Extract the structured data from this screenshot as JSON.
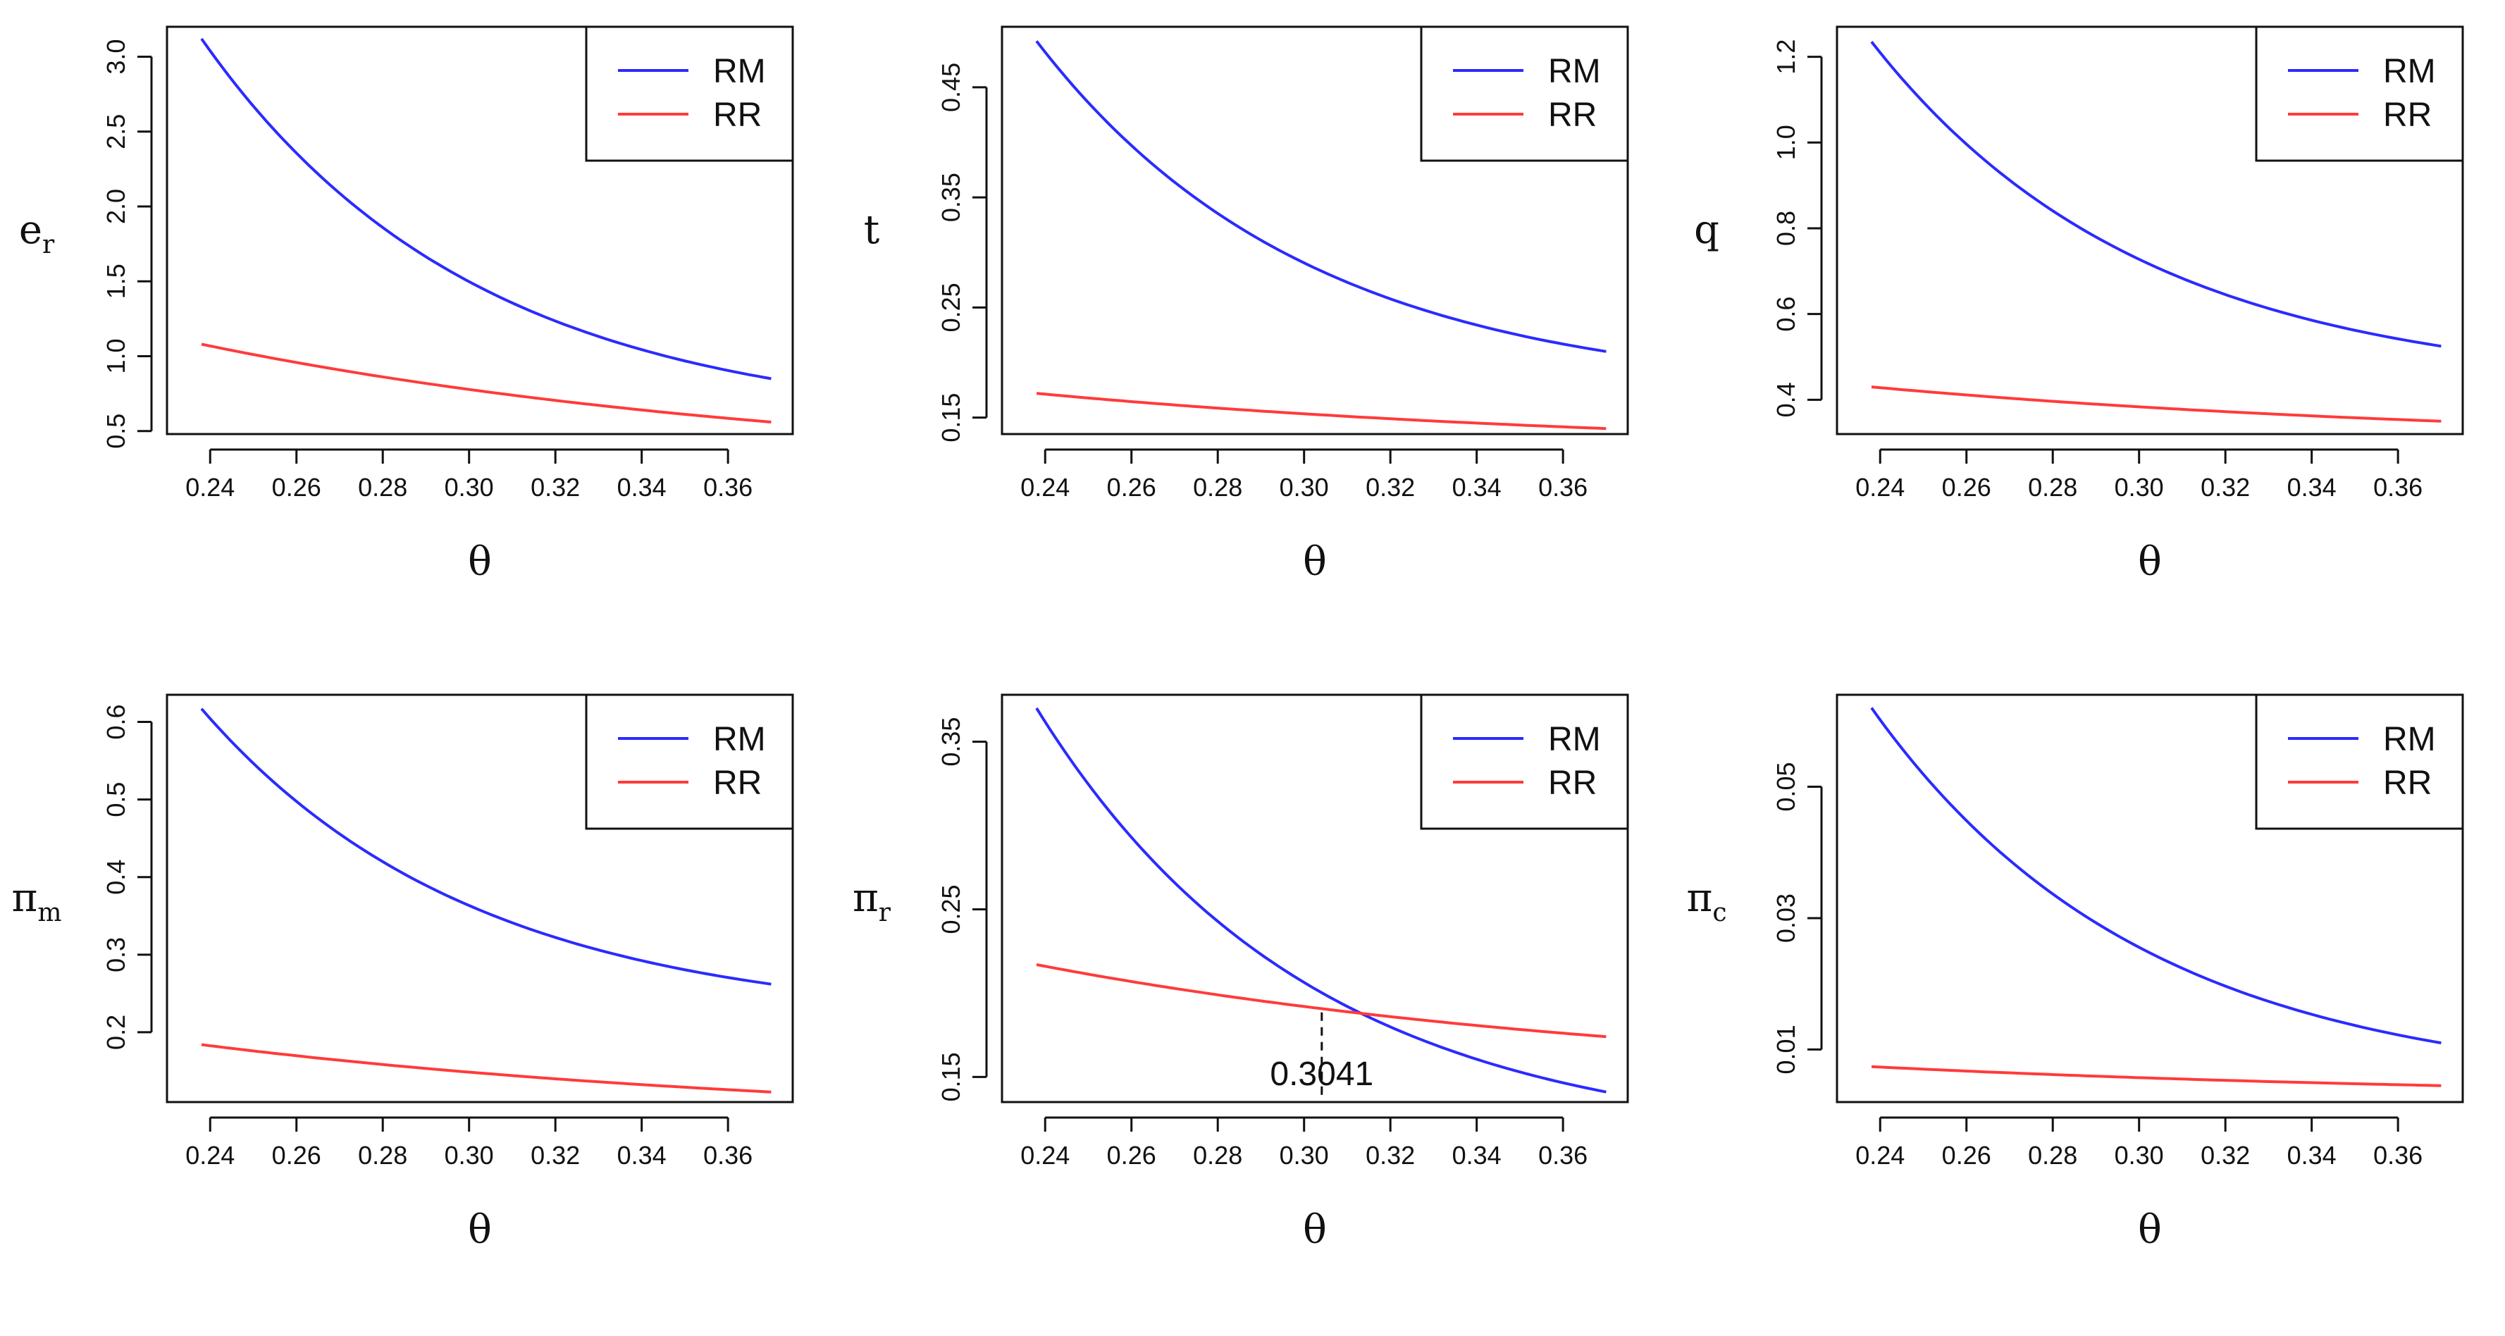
{
  "figure": {
    "rows": 2,
    "cols": 3
  },
  "chart_data": [
    {
      "type": "line",
      "panel": "top-left",
      "xlabel": "θ",
      "ylabel": "e",
      "ylabel_sub": "r",
      "x_ticks": [
        "0.24",
        "0.26",
        "0.28",
        "0.30",
        "0.32",
        "0.34",
        "0.36"
      ],
      "y_ticks": [
        "0.5",
        "1.0",
        "1.5",
        "2.0",
        "2.5",
        "3.0"
      ],
      "xlim": [
        0.23,
        0.375
      ],
      "ylim": [
        0.48,
        3.2
      ],
      "legend_position": "top-right",
      "series": [
        {
          "name": "RM",
          "color": "#2b2bff",
          "x0": 0.238,
          "x1": 0.37,
          "y0": 3.12,
          "y1": 0.85,
          "shape": "convex"
        },
        {
          "name": "RR",
          "color": "#ff3b3b",
          "x0": 0.238,
          "x1": 0.37,
          "y0": 1.08,
          "y1": 0.56,
          "shape": "mild"
        }
      ]
    },
    {
      "type": "line",
      "panel": "top-middle",
      "xlabel": "θ",
      "ylabel": "t",
      "ylabel_sub": "",
      "x_ticks": [
        "0.24",
        "0.26",
        "0.28",
        "0.30",
        "0.32",
        "0.34",
        "0.36"
      ],
      "y_ticks": [
        "0.15",
        "0.25",
        "0.35",
        "0.45"
      ],
      "xlim": [
        0.23,
        0.375
      ],
      "ylim": [
        0.135,
        0.505
      ],
      "legend_position": "top-right",
      "series": [
        {
          "name": "RM",
          "color": "#2b2bff",
          "x0": 0.238,
          "x1": 0.37,
          "y0": 0.492,
          "y1": 0.21,
          "shape": "convex"
        },
        {
          "name": "RR",
          "color": "#ff3b3b",
          "x0": 0.238,
          "x1": 0.37,
          "y0": 0.172,
          "y1": 0.14,
          "shape": "mild"
        }
      ]
    },
    {
      "type": "line",
      "panel": "top-right",
      "xlabel": "θ",
      "ylabel": "q",
      "ylabel_sub": "",
      "x_ticks": [
        "0.24",
        "0.26",
        "0.28",
        "0.30",
        "0.32",
        "0.34",
        "0.36"
      ],
      "y_ticks": [
        "0.4",
        "0.6",
        "0.8",
        "1.0",
        "1.2"
      ],
      "xlim": [
        0.23,
        0.375
      ],
      "ylim": [
        0.32,
        1.27
      ],
      "legend_position": "top-right",
      "series": [
        {
          "name": "RM",
          "color": "#2b2bff",
          "x0": 0.238,
          "x1": 0.37,
          "y0": 1.235,
          "y1": 0.525,
          "shape": "convex"
        },
        {
          "name": "RR",
          "color": "#ff3b3b",
          "x0": 0.238,
          "x1": 0.37,
          "y0": 0.43,
          "y1": 0.35,
          "shape": "mild"
        }
      ]
    },
    {
      "type": "line",
      "panel": "bottom-left",
      "xlabel": "θ",
      "ylabel": "π",
      "ylabel_sub": "m",
      "x_ticks": [
        "0.24",
        "0.26",
        "0.28",
        "0.30",
        "0.32",
        "0.34",
        "0.36"
      ],
      "y_ticks": [
        "0.2",
        "0.3",
        "0.4",
        "0.5",
        "0.6"
      ],
      "xlim": [
        0.23,
        0.375
      ],
      "ylim": [
        0.11,
        0.635
      ],
      "legend_position": "top-right",
      "series": [
        {
          "name": "RM",
          "color": "#2b2bff",
          "x0": 0.238,
          "x1": 0.37,
          "y0": 0.617,
          "y1": 0.262,
          "shape": "convex"
        },
        {
          "name": "RR",
          "color": "#ff3b3b",
          "x0": 0.238,
          "x1": 0.37,
          "y0": 0.184,
          "y1": 0.123,
          "shape": "mild"
        }
      ]
    },
    {
      "type": "line",
      "panel": "bottom-middle",
      "xlabel": "θ",
      "ylabel": "π",
      "ylabel_sub": "r",
      "x_ticks": [
        "0.24",
        "0.26",
        "0.28",
        "0.30",
        "0.32",
        "0.34",
        "0.36"
      ],
      "y_ticks": [
        "0.15",
        "0.25",
        "0.35"
      ],
      "xlim": [
        0.23,
        0.375
      ],
      "ylim": [
        0.135,
        0.378
      ],
      "legend_position": "top-right",
      "series": [
        {
          "name": "RM",
          "color": "#2b2bff",
          "x0": 0.238,
          "x1": 0.37,
          "y0": 0.37,
          "y1": 0.141,
          "shape": "convex"
        },
        {
          "name": "RR",
          "color": "#ff3b3b",
          "x0": 0.238,
          "x1": 0.37,
          "y0": 0.217,
          "y1": 0.174,
          "shape": "mild"
        }
      ],
      "annotation": {
        "label": "0.3041",
        "x": 0.3041,
        "y": 0.1885
      }
    },
    {
      "type": "line",
      "panel": "bottom-right",
      "xlabel": "θ",
      "ylabel": "π",
      "ylabel_sub": "c",
      "x_ticks": [
        "0.24",
        "0.26",
        "0.28",
        "0.30",
        "0.32",
        "0.34",
        "0.36"
      ],
      "y_ticks": [
        "0.01",
        "0.03",
        "0.05"
      ],
      "xlim": [
        0.23,
        0.375
      ],
      "ylim": [
        0.002,
        0.064
      ],
      "legend_position": "top-right",
      "series": [
        {
          "name": "RM",
          "color": "#2b2bff",
          "x0": 0.238,
          "x1": 0.37,
          "y0": 0.062,
          "y1": 0.011,
          "shape": "convex"
        },
        {
          "name": "RR",
          "color": "#ff3b3b",
          "x0": 0.238,
          "x1": 0.37,
          "y0": 0.0074,
          "y1": 0.0045,
          "shape": "mild"
        }
      ]
    }
  ]
}
